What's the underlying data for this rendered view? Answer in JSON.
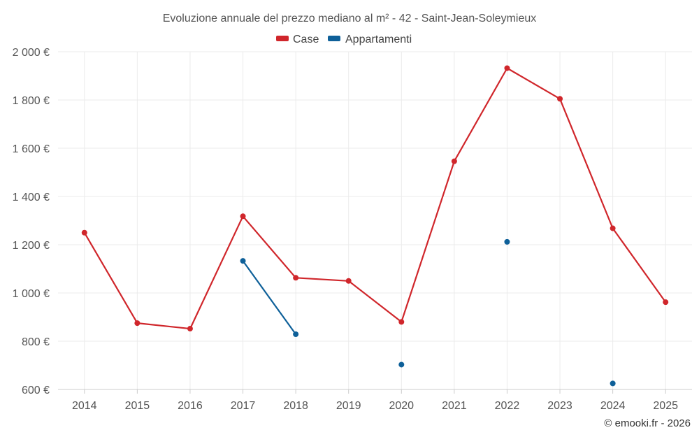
{
  "chart_data": {
    "type": "line",
    "title": "Evoluzione annuale del prezzo mediano al m² - 42 - Saint-Jean-Soleymieux",
    "categories": [
      "2014",
      "2015",
      "2016",
      "2017",
      "2018",
      "2019",
      "2020",
      "2021",
      "2022",
      "2023",
      "2024",
      "2025"
    ],
    "ylim": [
      600,
      2000
    ],
    "yticks": [
      600,
      800,
      1000,
      1200,
      1400,
      1600,
      1800,
      2000
    ],
    "ytick_labels": [
      "600 €",
      "800 €",
      "1 000 €",
      "1 200 €",
      "1 400 €",
      "1 600 €",
      "1 800 €",
      "2 000 €"
    ],
    "grid": true,
    "legend_position": "top-center",
    "series": [
      {
        "name": "Case",
        "color": "#d0262b",
        "values": [
          1250,
          875,
          852,
          1318,
          1063,
          1050,
          880,
          1546,
          1932,
          1805,
          1268,
          962
        ]
      },
      {
        "name": "Appartamenti",
        "color": "#0e6099",
        "values": [
          null,
          null,
          null,
          1133,
          829,
          null,
          703,
          null,
          1212,
          null,
          625,
          null
        ]
      }
    ]
  },
  "credit": "© emooki.fr - 2026"
}
